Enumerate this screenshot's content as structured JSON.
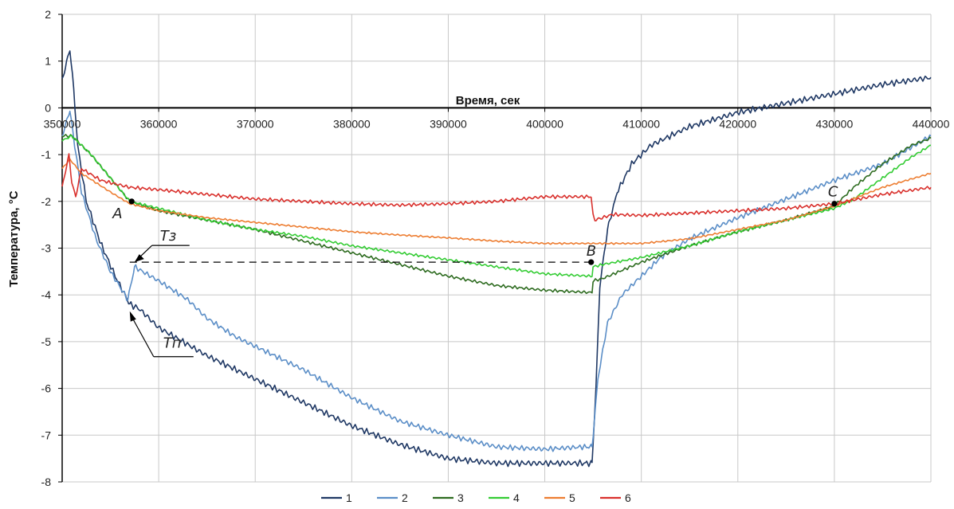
{
  "chart_data": {
    "type": "line",
    "xlabel": "Время, сек",
    "ylabel": "Температура, °C",
    "xlim": [
      350000,
      440000
    ],
    "ylim": [
      -8,
      2
    ],
    "grid": true,
    "legend_position": "bottom",
    "x_ticks": [
      "350000",
      "360000",
      "370000",
      "380000",
      "390000",
      "400000",
      "410000",
      "420000",
      "430000",
      "440000"
    ],
    "y_ticks": [
      "2",
      "1",
      "0",
      "-1",
      "-2",
      "-3",
      "-4",
      "-5",
      "-6",
      "-7",
      "-8"
    ],
    "series": [
      {
        "name": "1",
        "color": "#1f3864",
        "x": [
          350000,
          350800,
          351200,
          351600,
          352500,
          354000,
          355500,
          357000,
          358000,
          360000,
          365000,
          370000,
          375000,
          380000,
          385000,
          390000,
          395000,
          400000,
          404000,
          404900,
          405300,
          405700,
          406500,
          407500,
          409000,
          411000,
          415000,
          420000,
          425000,
          430000,
          435000,
          440000
        ],
        "y": [
          0.6,
          1.25,
          0.4,
          -0.8,
          -2.0,
          -2.9,
          -3.6,
          -4.2,
          -4.3,
          -4.7,
          -5.3,
          -5.8,
          -6.3,
          -6.8,
          -7.2,
          -7.5,
          -7.6,
          -7.6,
          -7.6,
          -7.6,
          -6.0,
          -3.8,
          -2.6,
          -1.8,
          -1.2,
          -0.8,
          -0.4,
          -0.1,
          0.1,
          0.3,
          0.5,
          0.65
        ]
      },
      {
        "name": "2",
        "color": "#5b8ec7",
        "x": [
          350000,
          350800,
          351300,
          352000,
          353500,
          355000,
          356800,
          357200,
          357500,
          360000,
          363000,
          365000,
          368000,
          370000,
          375000,
          380000,
          385000,
          390000,
          395000,
          400000,
          404000,
          404900,
          405500,
          406500,
          408000,
          410000,
          412000,
          415000,
          420000,
          425000,
          430000,
          435000,
          440000
        ],
        "y": [
          -0.6,
          -0.05,
          -0.8,
          -1.8,
          -2.8,
          -3.5,
          -4.1,
          -3.7,
          -3.4,
          -3.7,
          -4.1,
          -4.5,
          -4.9,
          -5.1,
          -5.6,
          -6.2,
          -6.7,
          -7.0,
          -7.25,
          -7.3,
          -7.25,
          -7.25,
          -5.8,
          -4.6,
          -4.0,
          -3.6,
          -3.2,
          -2.8,
          -2.35,
          -1.95,
          -1.55,
          -1.2,
          -0.6
        ]
      },
      {
        "name": "3",
        "color": "#2d6b1f",
        "x": [
          350000,
          351000,
          353000,
          355000,
          357000,
          360000,
          365000,
          370000,
          375000,
          380000,
          385000,
          390000,
          395000,
          400000,
          404900,
          405000,
          406000,
          410000,
          415000,
          420000,
          425000,
          430000,
          432000,
          435000,
          438000,
          440000
        ],
        "y": [
          -0.6,
          -0.6,
          -1.0,
          -1.5,
          -2.0,
          -2.2,
          -2.4,
          -2.6,
          -2.85,
          -3.1,
          -3.35,
          -3.6,
          -3.8,
          -3.9,
          -3.95,
          -3.7,
          -3.65,
          -3.3,
          -2.95,
          -2.65,
          -2.4,
          -2.1,
          -1.7,
          -1.2,
          -0.8,
          -0.65
        ]
      },
      {
        "name": "4",
        "color": "#33cc33",
        "x": [
          350000,
          351000,
          353000,
          355000,
          357000,
          360000,
          365000,
          370000,
          375000,
          380000,
          385000,
          390000,
          395000,
          400000,
          404900,
          405000,
          406000,
          410000,
          415000,
          420000,
          425000,
          430000,
          432000,
          435000,
          438000,
          440000
        ],
        "y": [
          -0.7,
          -0.6,
          -1.0,
          -1.5,
          -2.0,
          -2.15,
          -2.4,
          -2.6,
          -2.75,
          -2.95,
          -3.1,
          -3.25,
          -3.4,
          -3.55,
          -3.6,
          -3.4,
          -3.35,
          -3.2,
          -2.95,
          -2.65,
          -2.4,
          -2.15,
          -1.95,
          -1.5,
          -1.05,
          -0.8
        ]
      },
      {
        "name": "5",
        "color": "#ed7d31",
        "x": [
          350000,
          350800,
          352000,
          355000,
          357000,
          360000,
          365000,
          370000,
          375000,
          380000,
          385000,
          390000,
          395000,
          400000,
          405000,
          410000,
          415000,
          420000,
          425000,
          430000,
          435000,
          440000
        ],
        "y": [
          -1.3,
          -1.1,
          -1.4,
          -1.8,
          -2.05,
          -2.2,
          -2.35,
          -2.45,
          -2.55,
          -2.65,
          -2.72,
          -2.78,
          -2.85,
          -2.9,
          -2.9,
          -2.9,
          -2.8,
          -2.6,
          -2.4,
          -2.1,
          -1.7,
          -1.4
        ]
      },
      {
        "name": "6",
        "color": "#d9302c",
        "x": [
          350000,
          350700,
          351000,
          351400,
          352000,
          354000,
          357000,
          360000,
          365000,
          370000,
          375000,
          380000,
          385000,
          390000,
          395000,
          400000,
          404800,
          405000,
          405200,
          407000,
          410000,
          415000,
          420000,
          425000,
          430000,
          435000,
          440000
        ],
        "y": [
          -1.7,
          -1.0,
          -1.6,
          -1.9,
          -1.3,
          -1.55,
          -1.7,
          -1.75,
          -1.85,
          -1.95,
          -2.0,
          -2.05,
          -2.08,
          -2.05,
          -2.0,
          -1.9,
          -1.9,
          -2.3,
          -2.4,
          -2.28,
          -2.3,
          -2.25,
          -2.2,
          -2.15,
          -2.05,
          -1.85,
          -1.7
        ]
      }
    ],
    "annotations": [
      {
        "label": "A",
        "x": 357200,
        "y": -2.0
      },
      {
        "label": "B",
        "x": 404800,
        "y": -3.3
      },
      {
        "label": "C",
        "x": 430000,
        "y": -2.05
      },
      {
        "label": "Tз",
        "x": 357000,
        "y": -3.3
      },
      {
        "label": "Tп",
        "x": 357000,
        "y": -4.35
      }
    ],
    "reference_line_y": -3.3
  }
}
